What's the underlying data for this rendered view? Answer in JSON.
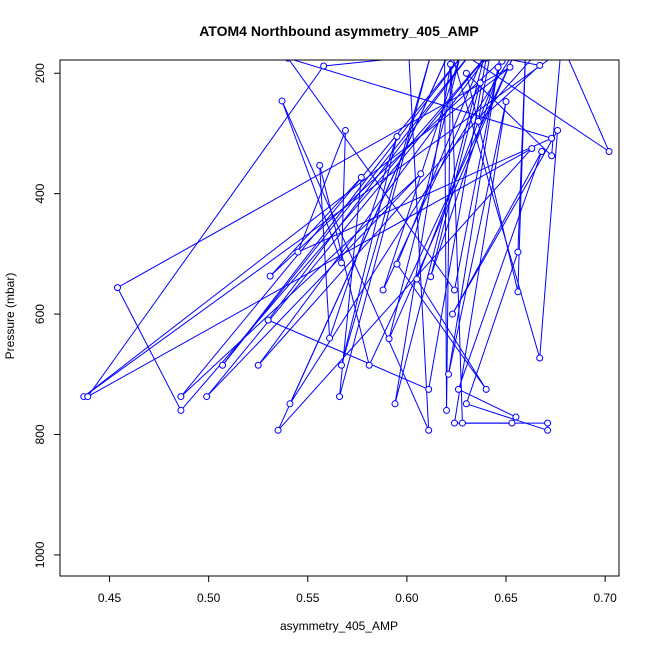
{
  "chart_data": {
    "type": "line",
    "title": "ATOM4 Northbound asymmetry_405_AMP",
    "xlabel": "asymmetry_405_AMP",
    "ylabel": "Pressure (mbar)",
    "xlim": [
      0.425,
      0.707
    ],
    "ylim": [
      1035,
      178
    ],
    "y_inverted": true,
    "x_ticks": [
      0.45,
      0.5,
      0.55,
      0.6,
      0.65,
      0.7
    ],
    "x_tick_labels": [
      "0.45",
      "0.50",
      "0.55",
      "0.60",
      "0.65",
      "0.70"
    ],
    "y_ticks": [
      200,
      400,
      600,
      800,
      1000
    ],
    "y_tick_labels": [
      "200",
      "400",
      "600",
      "800",
      "1000"
    ],
    "grid": false,
    "legend": "none",
    "colors": {
      "series": "#0000ff",
      "axes": "#000000"
    },
    "points": [
      {
        "x": 0.683,
        "y": 150
      },
      {
        "x": 0.437,
        "y": 737
      },
      {
        "x": 0.652,
        "y": 190
      },
      {
        "x": 0.454,
        "y": 556
      },
      {
        "x": 0.486,
        "y": 760
      },
      {
        "x": 0.643,
        "y": 160
      },
      {
        "x": 0.499,
        "y": 737
      },
      {
        "x": 0.607,
        "y": 367
      },
      {
        "x": 0.486,
        "y": 737
      },
      {
        "x": 0.628,
        "y": 170
      },
      {
        "x": 0.507,
        "y": 685
      },
      {
        "x": 0.635,
        "y": 155
      },
      {
        "x": 0.53,
        "y": 610
      },
      {
        "x": 0.611,
        "y": 725
      },
      {
        "x": 0.64,
        "y": 175
      },
      {
        "x": 0.525,
        "y": 685
      },
      {
        "x": 0.67,
        "y": 150
      },
      {
        "x": 0.558,
        "y": 188
      },
      {
        "x": 0.439,
        "y": 737
      },
      {
        "x": 0.663,
        "y": 325
      },
      {
        "x": 0.535,
        "y": 793
      },
      {
        "x": 0.622,
        "y": 160
      },
      {
        "x": 0.541,
        "y": 749
      },
      {
        "x": 0.657,
        "y": 150
      },
      {
        "x": 0.531,
        "y": 537
      },
      {
        "x": 0.577,
        "y": 373
      },
      {
        "x": 0.566,
        "y": 737
      },
      {
        "x": 0.612,
        "y": 170
      },
      {
        "x": 0.567,
        "y": 685
      },
      {
        "x": 0.595,
        "y": 305
      },
      {
        "x": 0.561,
        "y": 640
      },
      {
        "x": 0.556,
        "y": 353
      },
      {
        "x": 0.581,
        "y": 685
      },
      {
        "x": 0.654,
        "y": 170
      },
      {
        "x": 0.591,
        "y": 641
      },
      {
        "x": 0.627,
        "y": 170
      },
      {
        "x": 0.588,
        "y": 560
      },
      {
        "x": 0.637,
        "y": 216
      },
      {
        "x": 0.612,
        "y": 538
      },
      {
        "x": 0.648,
        "y": 180
      },
      {
        "x": 0.605,
        "y": 542
      },
      {
        "x": 0.64,
        "y": 725
      },
      {
        "x": 0.595,
        "y": 517
      },
      {
        "x": 0.64,
        "y": 160
      },
      {
        "x": 0.594,
        "y": 749
      },
      {
        "x": 0.622,
        "y": 185
      },
      {
        "x": 0.62,
        "y": 760
      },
      {
        "x": 0.619,
        "y": 160
      },
      {
        "x": 0.601,
        "y": 170
      },
      {
        "x": 0.611,
        "y": 793
      },
      {
        "x": 0.537,
        "y": 246
      },
      {
        "x": 0.567,
        "y": 515
      },
      {
        "x": 0.569,
        "y": 295
      },
      {
        "x": 0.545,
        "y": 497
      },
      {
        "x": 0.673,
        "y": 308
      },
      {
        "x": 0.54,
        "y": 175
      },
      {
        "x": 0.624,
        "y": 560
      },
      {
        "x": 0.646,
        "y": 190
      },
      {
        "x": 0.621,
        "y": 700
      },
      {
        "x": 0.65,
        "y": 247
      },
      {
        "x": 0.624,
        "y": 781
      },
      {
        "x": 0.653,
        "y": 781
      },
      {
        "x": 0.655,
        "y": 771
      },
      {
        "x": 0.626,
        "y": 725
      },
      {
        "x": 0.668,
        "y": 330
      },
      {
        "x": 0.623,
        "y": 600
      },
      {
        "x": 0.676,
        "y": 295
      },
      {
        "x": 0.667,
        "y": 673
      },
      {
        "x": 0.622,
        "y": 160
      },
      {
        "x": 0.628,
        "y": 781
      },
      {
        "x": 0.671,
        "y": 781
      },
      {
        "x": 0.671,
        "y": 793
      },
      {
        "x": 0.63,
        "y": 749
      },
      {
        "x": 0.656,
        "y": 497
      },
      {
        "x": 0.66,
        "y": 150
      },
      {
        "x": 0.656,
        "y": 563
      },
      {
        "x": 0.63,
        "y": 200
      },
      {
        "x": 0.673,
        "y": 337
      },
      {
        "x": 0.678,
        "y": 150
      },
      {
        "x": 0.702,
        "y": 330
      },
      {
        "x": 0.625,
        "y": 160
      },
      {
        "x": 0.667,
        "y": 187
      },
      {
        "x": 0.636,
        "y": 280
      },
      {
        "x": 0.643,
        "y": 150
      }
    ]
  }
}
